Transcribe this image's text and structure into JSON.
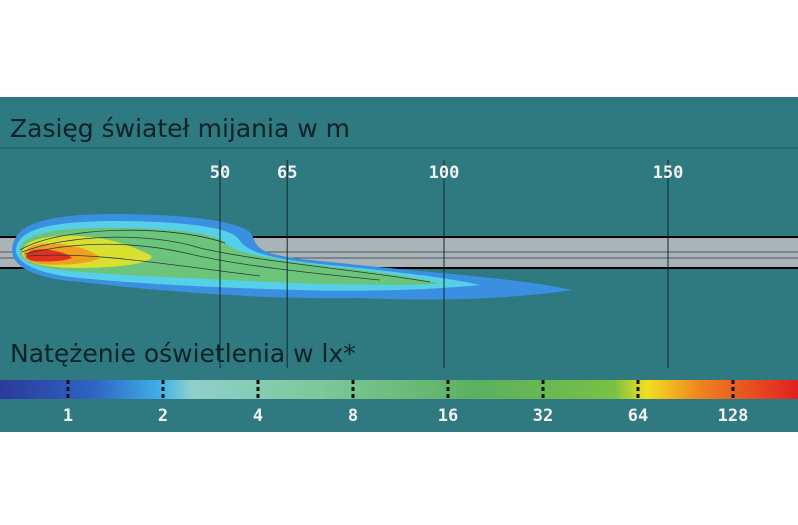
{
  "title": "Zasięg świateł mijania w m",
  "distance_markers": [
    50,
    65,
    100,
    150
  ],
  "legend": {
    "title": "Natężenie oświetlenia w lx*",
    "scale": [
      1,
      2,
      4,
      8,
      16,
      32,
      64,
      128
    ]
  }
}
